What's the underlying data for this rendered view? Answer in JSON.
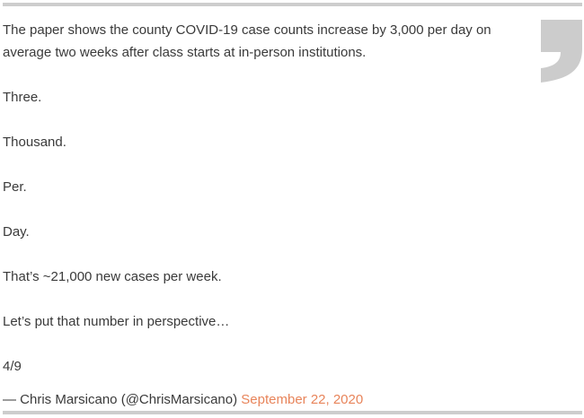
{
  "tweet": {
    "paragraphs": [
      "The paper shows the county COVID-19 case counts increase by 3,000 per day on average two weeks after class starts at in-person institutions.",
      "Three.",
      "Thousand.",
      "Per.",
      "Day.",
      "That’s ~21,000 new cases per week.",
      "Let’s put that number in perspective…",
      "4/9"
    ],
    "attribution": "— Chris Marsicano (@ChrisMarsicano)",
    "date": "September 22, 2020"
  },
  "colors": {
    "accent": "#e8845a",
    "border": "#cdcdcd",
    "quote_mark": "#cccccc"
  },
  "icons": {
    "quote": "closing-quote-icon"
  }
}
